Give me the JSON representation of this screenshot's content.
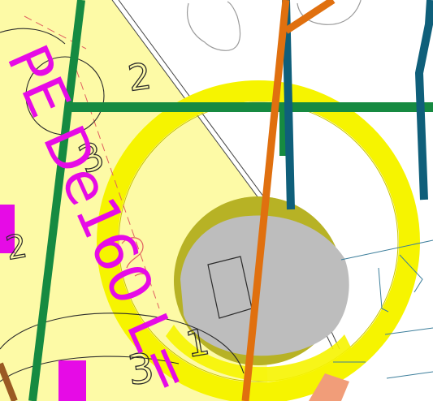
{
  "map": {
    "pipe_label": "PE De160 L=",
    "labels": {
      "top_two": "2",
      "left_three": "3",
      "bottom_three": "3",
      "right_one": "1",
      "left_two": "2"
    },
    "colors": {
      "background": "#ffffff",
      "parcel_fill": "#fdfaa6",
      "ring_yellow": "#f6f400",
      "ring_olive": "#b7b225",
      "core_gray": "#bdbdbd",
      "pipe_green": "#168a41",
      "pipe_orange": "#e0700f",
      "pipe_teal": "#0f5f7a",
      "label_magenta": "#e60be6",
      "dash_red": "#e06060",
      "line_dark": "#2b2b2b",
      "line_gray": "#9a9a9a",
      "line_blue": "#3c7e9b",
      "salmon": "#f19d79",
      "brown": "#9a5a23"
    }
  }
}
